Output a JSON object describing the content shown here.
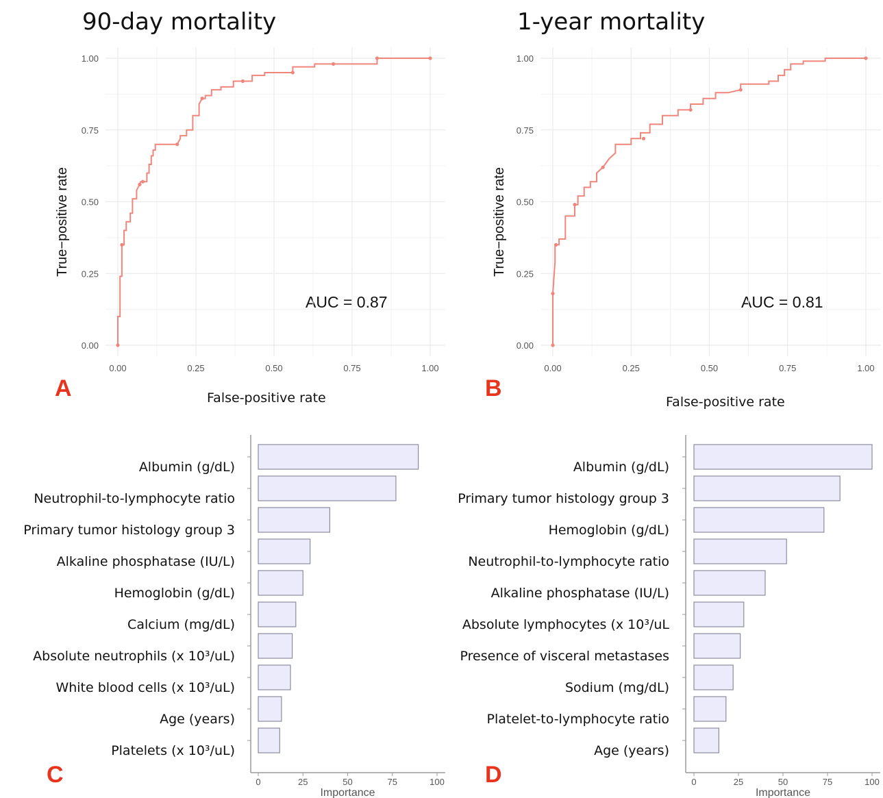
{
  "panels": {
    "A": {
      "letter": "A",
      "title": "90-day mortality"
    },
    "B": {
      "letter": "B",
      "title": "1-year mortality"
    },
    "C": {
      "letter": "C"
    },
    "D": {
      "letter": "D"
    }
  },
  "colors": {
    "roc_line": "#f0857c",
    "bar_fill": "#ebebfb",
    "bar_stroke": "#8c8c9c",
    "letter": "#e8341c"
  },
  "chart_data": [
    {
      "id": "A",
      "type": "line",
      "title": "90-day mortality",
      "xlabel": "False-positive rate",
      "ylabel": "True−positive rate",
      "xlim": [
        0,
        1
      ],
      "ylim": [
        0,
        1
      ],
      "xticks": [
        "0.00",
        "0.25",
        "0.50",
        "0.75",
        "1.00"
      ],
      "yticks": [
        "0.00",
        "0.25",
        "0.50",
        "0.75",
        "1.00"
      ],
      "grid": true,
      "annotation": "AUC = 0.87",
      "series": [
        {
          "x": [
            0,
            0,
            0.007,
            0.007,
            0.013,
            0.013,
            0.02,
            0.02,
            0.027,
            0.027,
            0.04,
            0.04,
            0.047,
            0.047,
            0.06,
            0.06,
            0.07,
            0.073,
            0.08,
            0.093,
            0.093,
            0.1,
            0.1,
            0.107,
            0.107,
            0.113,
            0.113,
            0.12,
            0.12,
            0.18,
            0.19,
            0.2,
            0.2,
            0.22,
            0.22,
            0.24,
            0.24,
            0.26,
            0.26,
            0.27,
            0.28,
            0.28,
            0.3,
            0.3,
            0.33,
            0.33,
            0.37,
            0.37,
            0.4,
            0.43,
            0.43,
            0.47,
            0.47,
            0.55,
            0.56,
            0.56,
            0.63,
            0.63,
            0.68,
            0.69,
            0.83,
            0.83,
            1.0
          ],
          "y": [
            0,
            0.1,
            0.1,
            0.24,
            0.24,
            0.35,
            0.35,
            0.4,
            0.4,
            0.43,
            0.43,
            0.46,
            0.46,
            0.51,
            0.51,
            0.54,
            0.56,
            0.57,
            0.57,
            0.57,
            0.6,
            0.6,
            0.63,
            0.63,
            0.66,
            0.66,
            0.68,
            0.68,
            0.7,
            0.7,
            0.7,
            0.72,
            0.73,
            0.73,
            0.75,
            0.75,
            0.8,
            0.8,
            0.84,
            0.86,
            0.86,
            0.87,
            0.87,
            0.89,
            0.89,
            0.9,
            0.9,
            0.92,
            0.92,
            0.92,
            0.94,
            0.94,
            0.95,
            0.95,
            0.95,
            0.97,
            0.97,
            0.98,
            0.98,
            0.98,
            0.98,
            1.0,
            1.0
          ]
        }
      ],
      "markers": [
        [
          0,
          0
        ],
        [
          0.013,
          0.35
        ],
        [
          0.07,
          0.56
        ],
        [
          0.08,
          0.57
        ],
        [
          0.19,
          0.7
        ],
        [
          0.27,
          0.86
        ],
        [
          0.4,
          0.92
        ],
        [
          0.56,
          0.95
        ],
        [
          0.69,
          0.98
        ],
        [
          0.83,
          1.0
        ],
        [
          1.0,
          1.0
        ]
      ]
    },
    {
      "id": "B",
      "type": "line",
      "title": "1-year mortality",
      "xlabel": "False-positive rate",
      "ylabel": "True−positive rate",
      "xlim": [
        0,
        1
      ],
      "ylim": [
        0,
        1
      ],
      "xticks": [
        "0.00",
        "0.25",
        "0.50",
        "0.75",
        "1.00"
      ],
      "yticks": [
        "0.00",
        "0.25",
        "0.50",
        "0.75",
        "1.00"
      ],
      "grid": true,
      "annotation": "AUC = 0.81",
      "series": [
        {
          "x": [
            0,
            0,
            0.007,
            0.007,
            0.02,
            0.02,
            0.04,
            0.04,
            0.07,
            0.07,
            0.08,
            0.08,
            0.1,
            0.1,
            0.12,
            0.12,
            0.14,
            0.14,
            0.16,
            0.18,
            0.2,
            0.2,
            0.25,
            0.25,
            0.28,
            0.28,
            0.31,
            0.31,
            0.35,
            0.35,
            0.4,
            0.4,
            0.44,
            0.44,
            0.48,
            0.48,
            0.52,
            0.52,
            0.56,
            0.6,
            0.6,
            0.69,
            0.69,
            0.72,
            0.72,
            0.74,
            0.74,
            0.76,
            0.76,
            0.8,
            0.8,
            0.87,
            0.87,
            1.0
          ],
          "y": [
            0,
            0.18,
            0.29,
            0.35,
            0.35,
            0.37,
            0.37,
            0.45,
            0.45,
            0.49,
            0.49,
            0.52,
            0.52,
            0.55,
            0.55,
            0.57,
            0.57,
            0.6,
            0.62,
            0.65,
            0.67,
            0.7,
            0.7,
            0.72,
            0.72,
            0.74,
            0.74,
            0.77,
            0.77,
            0.8,
            0.8,
            0.82,
            0.82,
            0.84,
            0.84,
            0.86,
            0.86,
            0.88,
            0.88,
            0.89,
            0.91,
            0.91,
            0.92,
            0.92,
            0.94,
            0.94,
            0.96,
            0.96,
            0.98,
            0.98,
            0.99,
            0.99,
            1.0,
            1.0
          ]
        }
      ],
      "markers": [
        [
          0,
          0
        ],
        [
          0,
          0.18
        ],
        [
          0.01,
          0.35
        ],
        [
          0.07,
          0.49
        ],
        [
          0.16,
          0.62
        ],
        [
          0.29,
          0.72
        ],
        [
          0.44,
          0.82
        ],
        [
          0.6,
          0.89
        ],
        [
          1.0,
          1.0
        ]
      ]
    },
    {
      "id": "C",
      "type": "bar",
      "orientation": "horizontal",
      "xlabel": "Importance",
      "xlim": [
        0,
        100
      ],
      "xticks": [
        "0",
        "25",
        "50",
        "75",
        "100"
      ],
      "categories": [
        "Albumin (g/dL)",
        "Neutrophil-to-lymphocyte ratio",
        "Primary tumor histology group 3",
        "Alkaline phosphatase (IU/L)",
        "Hemoglobin (g/dL)",
        "Calcium (mg/dL)",
        "Absolute neutrophils (x 10³/uL)",
        "White blood cells (x 10³/uL)",
        "Age (years)",
        "Platelets (x 10³/uL)"
      ],
      "values": [
        100,
        77,
        40,
        29,
        25,
        21,
        19,
        18,
        13,
        12
      ]
    },
    {
      "id": "D",
      "type": "bar",
      "orientation": "horizontal",
      "xlabel": "Importance",
      "xlim": [
        0,
        100
      ],
      "xticks": [
        "0",
        "25",
        "50",
        "75",
        "100"
      ],
      "categories": [
        "Albumin (g/dL)",
        "Primary tumor histology group 3",
        "Hemoglobin (g/dL)",
        "Neutrophil-to-lymphocyte ratio",
        "Alkaline phosphatase (IU/L)",
        "Absolute lymphocytes (x 10³/uL",
        "Presence of visceral metastases",
        "Sodium (mg/dL)",
        "Platelet-to-lymphocyte ratio",
        "Age (years)"
      ],
      "values": [
        100,
        82,
        73,
        52,
        40,
        28,
        26,
        22,
        18,
        14
      ]
    }
  ]
}
